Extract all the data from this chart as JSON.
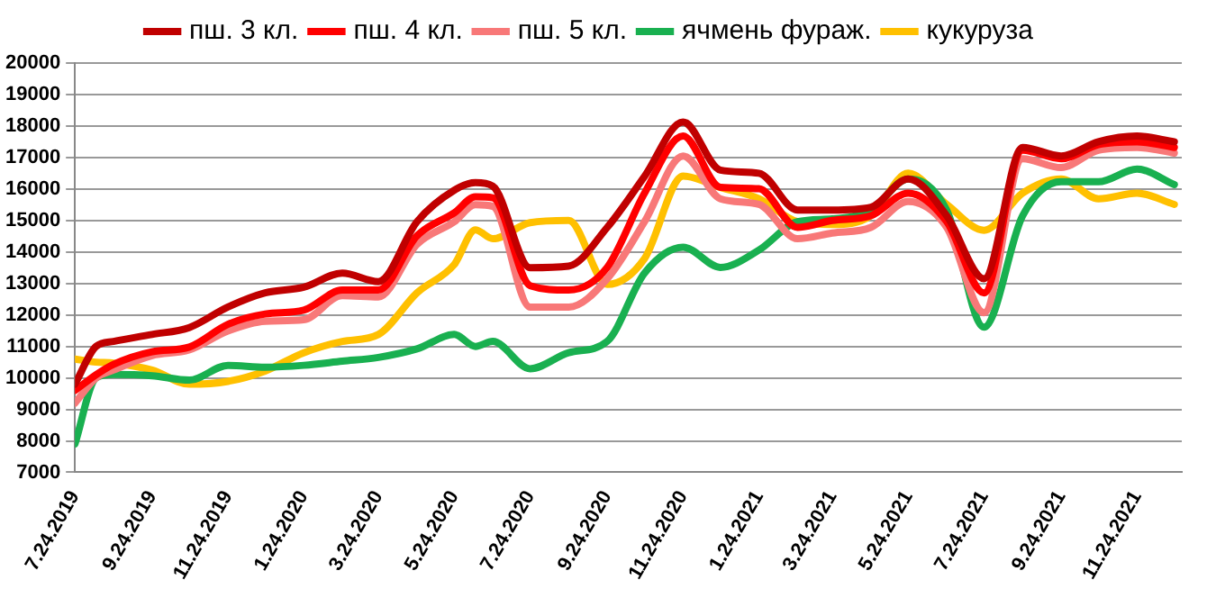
{
  "chart_data": {
    "type": "line",
    "x": [
      "2019-07-24",
      "2019-08-10",
      "2019-08-24",
      "2019-09-24",
      "2019-10-24",
      "2019-11-24",
      "2019-12-24",
      "2020-01-24",
      "2020-02-24",
      "2020-03-24",
      "2020-04-24",
      "2020-05-24",
      "2020-06-10",
      "2020-06-24",
      "2020-07-24",
      "2020-08-24",
      "2020-09-24",
      "2020-10-24",
      "2020-11-24",
      "2020-12-24",
      "2021-01-24",
      "2021-02-24",
      "2021-03-24",
      "2021-04-24",
      "2021-05-24",
      "2021-06-24",
      "2021-07-24",
      "2021-08-24",
      "2021-09-24",
      "2021-10-24",
      "2021-11-24",
      "2021-12-24"
    ],
    "series": [
      {
        "name": "пш. 3 кл.",
        "color": "#c00000",
        "values": [
          9800,
          11000,
          11160,
          11380,
          11600,
          12250,
          12700,
          12880,
          13330,
          13060,
          14960,
          15960,
          16200,
          16090,
          13500,
          13550,
          14780,
          16400,
          18130,
          16600,
          16500,
          15330,
          15330,
          15420,
          16320,
          15150,
          13150,
          17320,
          17050,
          17500,
          17680,
          17500
        ]
      },
      {
        "name": "пш. 4 кл.",
        "color": "#ff0000",
        "values": [
          9600,
          10100,
          10430,
          10830,
          10980,
          11700,
          12030,
          12150,
          12790,
          12790,
          14510,
          15240,
          15750,
          15720,
          12930,
          12790,
          13510,
          15870,
          17680,
          16050,
          16010,
          14780,
          15000,
          15150,
          15870,
          14960,
          12700,
          17230,
          16960,
          17410,
          17500,
          17320
        ]
      },
      {
        "name": "пш. 5 кл.",
        "color": "#f87878",
        "values": [
          9200,
          10000,
          10250,
          10710,
          10890,
          11490,
          11800,
          11850,
          12610,
          12570,
          14240,
          14960,
          15500,
          15450,
          12250,
          12250,
          13150,
          14960,
          17050,
          15690,
          15510,
          14420,
          14600,
          14780,
          15600,
          14780,
          12070,
          16960,
          16680,
          17230,
          17320,
          17140
        ]
      },
      {
        "name": "ячмень фураж.",
        "color": "#19b050",
        "values": [
          7900,
          10000,
          10110,
          10070,
          9930,
          10400,
          10340,
          10400,
          10530,
          10650,
          10920,
          11380,
          11000,
          11160,
          10290,
          10800,
          11160,
          13330,
          14150,
          13510,
          14060,
          14960,
          15050,
          15330,
          16320,
          15330,
          11610,
          15150,
          16230,
          16230,
          16630,
          16140
        ]
      },
      {
        "name": "кукуруза",
        "color": "#ffc000",
        "values": [
          10600,
          10500,
          10470,
          10250,
          9800,
          9890,
          10220,
          10800,
          11160,
          11380,
          12700,
          13600,
          14700,
          14420,
          14930,
          15000,
          12970,
          13790,
          16410,
          16050,
          15690,
          14960,
          14870,
          15150,
          16500,
          15510,
          14690,
          15870,
          16320,
          15690,
          15870,
          15510
        ]
      }
    ],
    "xlim": [
      "2019-07-24",
      "2021-12-30"
    ],
    "xticks": [
      {
        "value": "2019-07-24",
        "label": "7.24.2019"
      },
      {
        "value": "2019-09-24",
        "label": "9.24.2019"
      },
      {
        "value": "2019-11-24",
        "label": "11.24.2019"
      },
      {
        "value": "2020-01-24",
        "label": "1.24.2020"
      },
      {
        "value": "2020-03-24",
        "label": "3.24.2020"
      },
      {
        "value": "2020-05-24",
        "label": "5.24.2020"
      },
      {
        "value": "2020-07-24",
        "label": "7.24.2020"
      },
      {
        "value": "2020-09-24",
        "label": "9.24.2020"
      },
      {
        "value": "2020-11-24",
        "label": "11.24.2020"
      },
      {
        "value": "2021-01-24",
        "label": "1.24.2021"
      },
      {
        "value": "2021-03-24",
        "label": "3.24.2021"
      },
      {
        "value": "2021-05-24",
        "label": "5.24.2021"
      },
      {
        "value": "2021-07-24",
        "label": "7.24.2021"
      },
      {
        "value": "2021-09-24",
        "label": "9.24.2021"
      },
      {
        "value": "2021-11-24",
        "label": "11.24.2021"
      }
    ],
    "ylim": [
      7000,
      20000
    ],
    "yticks": [
      7000,
      8000,
      9000,
      10000,
      11000,
      12000,
      13000,
      14000,
      15000,
      16000,
      17000,
      18000,
      19000,
      20000
    ],
    "grid": "y",
    "legend": "top",
    "marker": "none",
    "line_style": "solid"
  }
}
